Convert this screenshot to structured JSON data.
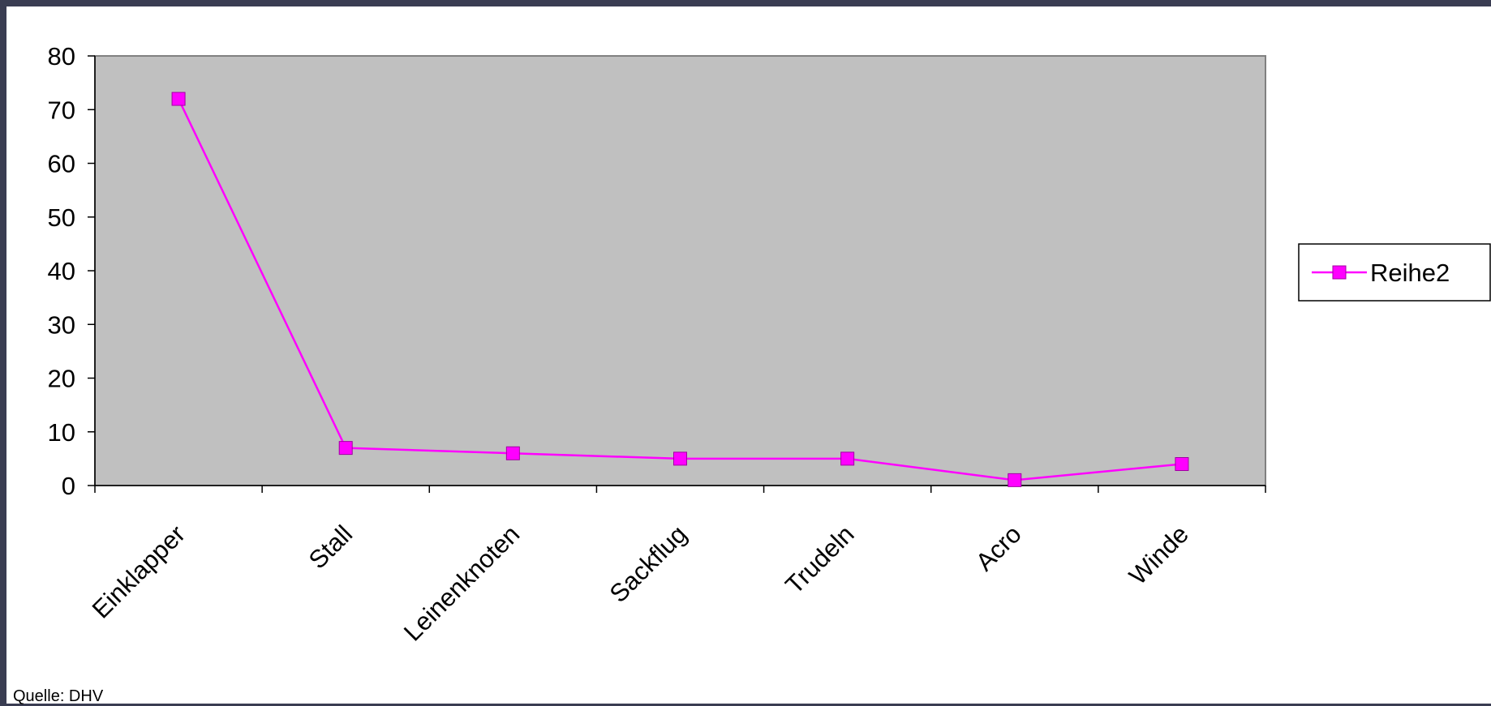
{
  "chart_data": {
    "type": "line",
    "categories": [
      "Einklapper",
      "Stall",
      "Leinenknoten",
      "Sackflug",
      "Trudeln",
      "Acro",
      "Winde"
    ],
    "series": [
      {
        "name": "Reihe2",
        "values": [
          72,
          7,
          6,
          5,
          5,
          1,
          4
        ],
        "color": "#ff00ff",
        "marker": "square"
      }
    ],
    "ylim": [
      0,
      80
    ],
    "yticks": [
      0,
      10,
      20,
      30,
      40,
      50,
      60,
      70,
      80
    ],
    "title": "",
    "xlabel": "",
    "ylabel": "",
    "grid": false,
    "plot_background": "#c0c0c0",
    "legend_placement": "right"
  },
  "source_note": "Quelle: DHV"
}
